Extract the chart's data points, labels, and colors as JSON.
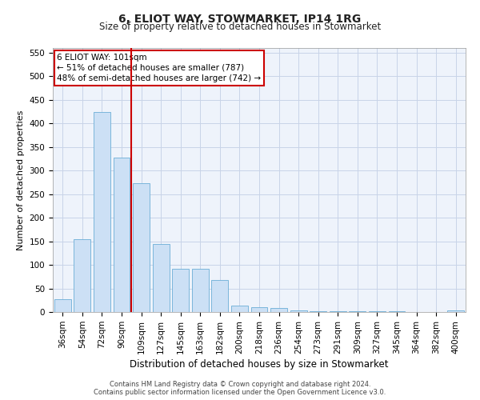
{
  "title": "6, ELIOT WAY, STOWMARKET, IP14 1RG",
  "subtitle": "Size of property relative to detached houses in Stowmarket",
  "xlabel": "Distribution of detached houses by size in Stowmarket",
  "ylabel": "Number of detached properties",
  "footer_line1": "Contains HM Land Registry data © Crown copyright and database right 2024.",
  "footer_line2": "Contains public sector information licensed under the Open Government Licence v3.0.",
  "categories": [
    "36sqm",
    "54sqm",
    "72sqm",
    "90sqm",
    "109sqm",
    "127sqm",
    "145sqm",
    "163sqm",
    "182sqm",
    "200sqm",
    "218sqm",
    "236sqm",
    "254sqm",
    "273sqm",
    "291sqm",
    "309sqm",
    "327sqm",
    "345sqm",
    "364sqm",
    "382sqm",
    "400sqm"
  ],
  "values": [
    27,
    155,
    425,
    328,
    273,
    145,
    91,
    91,
    68,
    13,
    11,
    9,
    4,
    2,
    1,
    1,
    1,
    1,
    0,
    0,
    4
  ],
  "bar_color": "#cce0f5",
  "bar_edge_color": "#6baed6",
  "vline_color": "#cc0000",
  "vline_x": 3.5,
  "annotation_line1": "6 ELIOT WAY: 101sqm",
  "annotation_line2": "← 51% of detached houses are smaller (787)",
  "annotation_line3": "48% of semi-detached houses are larger (742) →",
  "annotation_box_color": "#cc0000",
  "ylim": [
    0,
    560
  ],
  "yticks": [
    0,
    50,
    100,
    150,
    200,
    250,
    300,
    350,
    400,
    450,
    500,
    550
  ],
  "grid_color": "#c8d4e8",
  "bg_color": "#eef3fb",
  "title_fontsize": 10,
  "subtitle_fontsize": 8.5,
  "xlabel_fontsize": 8.5,
  "ylabel_fontsize": 8,
  "tick_fontsize": 7.5,
  "footer_fontsize": 6,
  "annotation_fontsize": 7.5
}
